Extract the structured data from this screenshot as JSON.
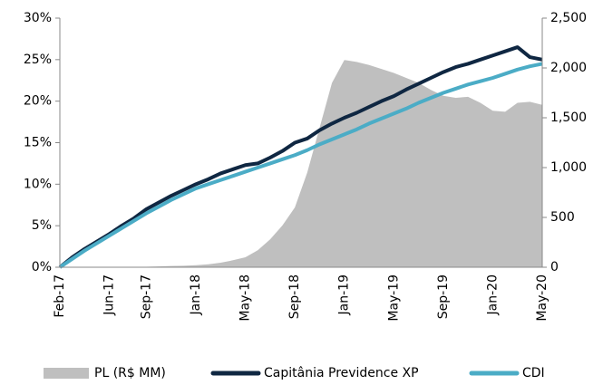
{
  "chart_data": {
    "type": "line",
    "categories": [
      "Feb-17",
      null,
      null,
      null,
      "Jun-17",
      null,
      null,
      "Sep-17",
      null,
      null,
      null,
      "Jan-18",
      null,
      null,
      null,
      "May-18",
      null,
      null,
      null,
      "Sep-18",
      null,
      null,
      null,
      "Jan-19",
      null,
      null,
      null,
      "May-19",
      null,
      null,
      null,
      "Sep-19",
      null,
      null,
      null,
      "Jan-20",
      null,
      null,
      null,
      "May-20"
    ],
    "series": [
      {
        "name": "PL (R$ MM)",
        "type": "area",
        "axis": "y2",
        "color": "#bfbfbf",
        "values": [
          0,
          0,
          0,
          0,
          0,
          2,
          3,
          5,
          8,
          12,
          15,
          20,
          30,
          45,
          70,
          100,
          170,
          280,
          420,
          600,
          950,
          1400,
          1850,
          2080,
          2060,
          2030,
          1990,
          1950,
          1900,
          1850,
          1780,
          1720,
          1700,
          1710,
          1650,
          1570,
          1560,
          1650,
          1660,
          1630
        ]
      },
      {
        "name": "Capitânia Previdence XP",
        "type": "line",
        "axis": "y",
        "color": "#0f2742",
        "values": [
          0,
          1.2,
          2.2,
          3.1,
          4,
          5,
          5.9,
          7,
          7.8,
          8.6,
          9.3,
          10,
          10.6,
          11.3,
          11.8,
          12.3,
          12.5,
          13.2,
          14,
          15,
          15.5,
          16.5,
          17.3,
          18,
          18.6,
          19.3,
          20,
          20.6,
          21.4,
          22.1,
          22.8,
          23.5,
          24.1,
          24.5,
          25,
          25.5,
          26,
          26.5,
          25.3,
          25
        ]
      },
      {
        "name": "CDI",
        "type": "line",
        "axis": "y",
        "color": "#4bacc6",
        "values": [
          0,
          1,
          2,
          2.9,
          3.8,
          4.7,
          5.6,
          6.5,
          7.3,
          8.1,
          8.8,
          9.5,
          10,
          10.5,
          11,
          11.5,
          12,
          12.5,
          13,
          13.5,
          14.1,
          14.8,
          15.4,
          16,
          16.6,
          17.3,
          17.9,
          18.5,
          19.1,
          19.8,
          20.4,
          21,
          21.5,
          22,
          22.4,
          22.8,
          23.3,
          23.8,
          24.2,
          24.5
        ]
      }
    ],
    "ylim": [
      0,
      30
    ],
    "yticks": [
      {
        "value": 0,
        "label": "0%"
      },
      {
        "value": 5,
        "label": "5%"
      },
      {
        "value": 10,
        "label": "10%"
      },
      {
        "value": 15,
        "label": "15%"
      },
      {
        "value": 20,
        "label": "20%"
      },
      {
        "value": 25,
        "label": "25%"
      },
      {
        "value": 30,
        "label": "30%"
      }
    ],
    "y2lim": [
      0,
      2500
    ],
    "y2ticks": [
      0,
      500,
      {
        "value": 1000,
        "label": "1,000"
      },
      {
        "value": 1500,
        "label": "1,500"
      },
      {
        "value": 2000,
        "label": "2,000"
      },
      {
        "value": 2500,
        "label": "2,500"
      }
    ],
    "legend": "bottom"
  }
}
